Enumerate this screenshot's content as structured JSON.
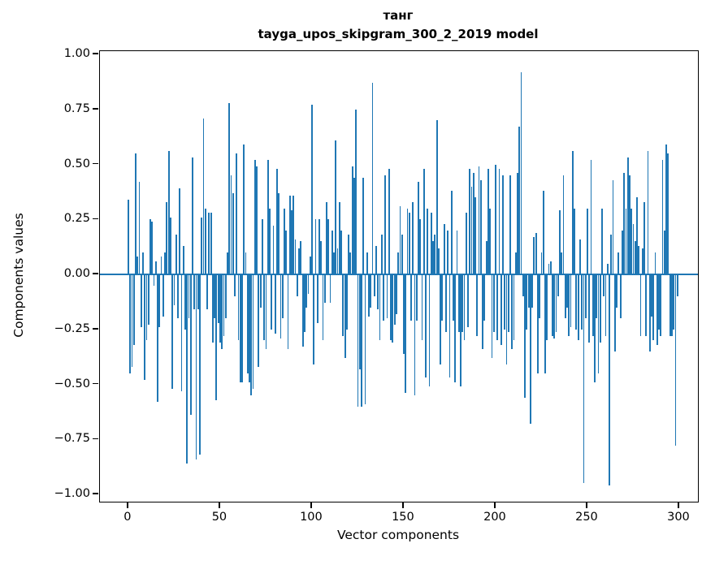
{
  "chart_data": {
    "type": "bar",
    "title": "танг",
    "subtitle": "tayga_upos_skipgram_300_2_2019 model",
    "xlabel": "Vector components",
    "ylabel": "Components values",
    "bar_color": "#1f77b4",
    "spine_color": "#000000",
    "background_color": "#ffffff",
    "grid": false,
    "legend": null,
    "zero_line": true,
    "xlim": [
      -15.45,
      310.2
    ],
    "ylim": [
      -1.033,
      1.015
    ],
    "bar_width_units": 0.8,
    "xticks": [
      {
        "label": "0",
        "value": 0
      },
      {
        "label": "50",
        "value": 50
      },
      {
        "label": "100",
        "value": 100
      },
      {
        "label": "150",
        "value": 150
      },
      {
        "label": "200",
        "value": 200
      },
      {
        "label": "250",
        "value": 250
      },
      {
        "label": "300",
        "value": 300
      }
    ],
    "yticks": [
      {
        "label": "1.00",
        "value": 1.0
      },
      {
        "label": "0.75",
        "value": 0.75
      },
      {
        "label": "0.50",
        "value": 0.5
      },
      {
        "label": "0.25",
        "value": 0.25
      },
      {
        "label": "0.00",
        "value": 0.0
      },
      {
        "label": "−0.25",
        "value": -0.25
      },
      {
        "label": "−0.50",
        "value": -0.5
      },
      {
        "label": "−0.75",
        "value": -0.75
      },
      {
        "label": "−1.00",
        "value": -1.0
      }
    ],
    "x_start": 0,
    "values": [
      0.34,
      -0.45,
      -0.42,
      -0.32,
      0.55,
      0.08,
      0.42,
      -0.24,
      0.1,
      -0.48,
      -0.3,
      -0.23,
      0.25,
      0.24,
      -0.05,
      0.06,
      -0.58,
      -0.24,
      0.08,
      -0.19,
      0.1,
      0.33,
      0.56,
      0.26,
      -0.52,
      -0.14,
      0.18,
      -0.2,
      0.39,
      -0.53,
      0.13,
      -0.25,
      -0.86,
      -0.2,
      -0.64,
      0.53,
      -0.16,
      -0.84,
      -0.16,
      -0.82,
      0.26,
      0.71,
      0.3,
      -0.16,
      0.28,
      0.28,
      -0.31,
      -0.2,
      -0.57,
      -0.22,
      -0.31,
      -0.34,
      -0.28,
      -0.2,
      0.1,
      0.78,
      0.45,
      0.37,
      -0.1,
      0.55,
      -0.3,
      -0.49,
      -0.49,
      0.59,
      0.1,
      -0.45,
      -0.49,
      -0.55,
      -0.52,
      0.52,
      0.49,
      -0.42,
      -0.15,
      0.25,
      -0.3,
      -0.34,
      0.52,
      0.3,
      -0.25,
      0.22,
      -0.27,
      0.48,
      0.37,
      -0.29,
      -0.2,
      0.3,
      0.2,
      -0.34,
      0.36,
      0.29,
      0.36,
      0.16,
      -0.1,
      0.12,
      0.15,
      -0.33,
      -0.26,
      -0.15,
      -0.09,
      0.08,
      0.77,
      -0.41,
      0.25,
      -0.22,
      0.25,
      0.15,
      -0.3,
      -0.13,
      0.33,
      0.25,
      -0.13,
      0.2,
      0.1,
      0.61,
      0.12,
      0.33,
      0.2,
      -0.28,
      -0.38,
      -0.25,
      0.18,
      0.1,
      0.49,
      0.44,
      0.75,
      -0.6,
      -0.43,
      -0.6,
      0.44,
      -0.59,
      0.1,
      -0.19,
      -0.15,
      0.87,
      -0.1,
      0.13,
      -0.16,
      -0.3,
      0.18,
      -0.21,
      0.45,
      -0.2,
      0.48,
      -0.3,
      -0.31,
      -0.23,
      -0.18,
      0.1,
      0.31,
      0.18,
      -0.36,
      -0.54,
      0.3,
      0.28,
      -0.21,
      0.33,
      -0.55,
      -0.21,
      0.42,
      0.25,
      -0.3,
      0.48,
      -0.47,
      0.3,
      -0.51,
      0.28,
      0.15,
      0.18,
      0.7,
      0.12,
      -0.41,
      -0.21,
      0.23,
      -0.26,
      0.2,
      -0.47,
      0.38,
      -0.21,
      -0.49,
      0.2,
      -0.26,
      -0.51,
      -0.26,
      -0.3,
      0.28,
      -0.24,
      0.48,
      0.4,
      0.46,
      0.35,
      -0.28,
      0.49,
      0.43,
      -0.34,
      -0.21,
      0.15,
      0.48,
      0.3,
      -0.38,
      -0.26,
      0.5,
      -0.3,
      0.48,
      -0.32,
      0.45,
      -0.25,
      -0.41,
      -0.26,
      0.45,
      -0.34,
      -0.3,
      0.1,
      0.46,
      0.67,
      0.92,
      -0.1,
      -0.56,
      -0.25,
      -0.15,
      -0.68,
      -0.15,
      0.17,
      0.19,
      -0.45,
      -0.2,
      0.1,
      0.38,
      -0.45,
      -0.3,
      0.05,
      0.06,
      -0.28,
      -0.29,
      -0.26,
      -0.1,
      0.29,
      0.1,
      0.45,
      -0.2,
      -0.15,
      -0.28,
      -0.24,
      0.56,
      0.3,
      -0.25,
      -0.3,
      0.16,
      -0.25,
      -0.95,
      -0.2,
      0.3,
      -0.31,
      0.52,
      -0.28,
      -0.49,
      -0.2,
      -0.45,
      -0.31,
      0.3,
      -0.1,
      -0.28,
      0.05,
      -0.96,
      0.18,
      0.43,
      -0.35,
      -0.15,
      0.1,
      -0.2,
      0.2,
      0.46,
      0.3,
      0.53,
      0.45,
      0.3,
      0.23,
      0.15,
      0.35,
      0.13,
      -0.28,
      0.12,
      0.33,
      -0.28,
      0.56,
      -0.35,
      -0.19,
      -0.3,
      0.1,
      -0.32,
      -0.25,
      -0.28,
      0.52,
      0.2,
      0.59,
      0.55,
      -0.28,
      -0.28,
      -0.25,
      -0.78,
      -0.1
    ]
  }
}
